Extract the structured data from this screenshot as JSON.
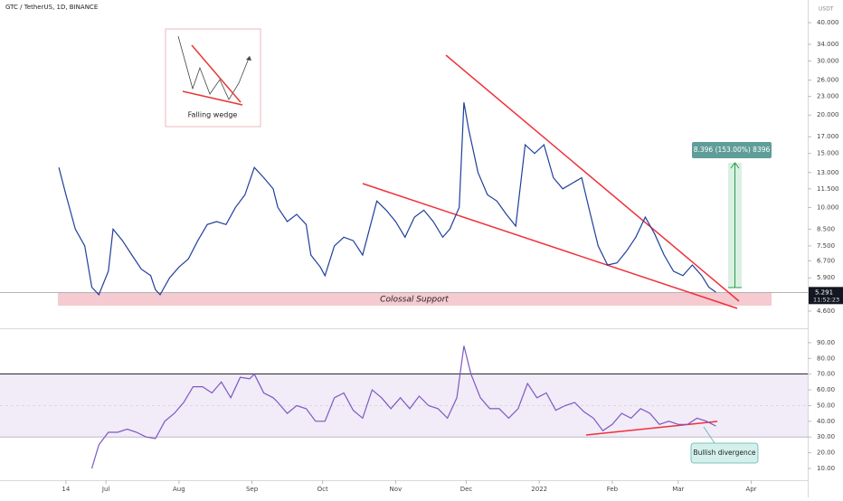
{
  "chart_data": [
    {
      "type": "line",
      "title": "GTC / TetherUS, 1D, BINANCE",
      "y_unit": "USDT",
      "log_scale": true,
      "color": "#1f3f9c",
      "xlim": [
        -28,
        315
      ],
      "ylim": [
        4.07,
        47.4
      ],
      "yticks": [
        {
          "value": 40,
          "label": "40.000"
        },
        {
          "value": 34,
          "label": "34.000"
        },
        {
          "value": 30,
          "label": "30.000"
        },
        {
          "value": 26,
          "label": "26.000"
        },
        {
          "value": 23,
          "label": "23.000"
        },
        {
          "value": 20,
          "label": "20.000"
        },
        {
          "value": 17,
          "label": "17.000"
        },
        {
          "value": 15,
          "label": "15.000"
        },
        {
          "value": 13,
          "label": "13.000"
        },
        {
          "value": 11.5,
          "label": "11.500"
        },
        {
          "value": 10,
          "label": "10.000"
        },
        {
          "value": 8.5,
          "label": "8.500"
        },
        {
          "value": 7.5,
          "label": "7.500"
        },
        {
          "value": 6.7,
          "label": "6.700"
        },
        {
          "value": 5.9,
          "label": "5.900"
        },
        {
          "value": 4.6,
          "label": "4.600"
        }
      ],
      "x": [
        -3,
        0,
        4,
        8,
        11,
        14,
        18,
        20,
        24,
        28,
        32,
        36,
        38,
        40,
        44,
        48,
        52,
        56,
        60,
        64,
        68,
        72,
        76,
        80,
        84,
        88,
        90,
        94,
        98,
        102,
        104,
        108,
        110,
        114,
        118,
        122,
        126,
        128,
        132,
        136,
        140,
        144,
        148,
        152,
        156,
        160,
        163,
        167,
        169,
        171,
        175,
        179,
        183,
        187,
        191,
        195,
        199,
        203,
        207,
        211,
        215,
        219,
        222,
        226,
        230,
        234,
        238,
        242,
        246,
        250,
        254,
        258,
        262,
        266,
        270,
        273,
        276
      ],
      "values": [
        13.5,
        11,
        8.5,
        7.5,
        5.5,
        5.2,
        6.2,
        8.5,
        7.8,
        7.0,
        6.3,
        6.0,
        5.4,
        5.2,
        5.9,
        6.4,
        6.8,
        7.8,
        8.8,
        9.0,
        8.8,
        10.0,
        11.0,
        13.5,
        12.5,
        11.5,
        10.0,
        9.0,
        9.5,
        8.8,
        7.0,
        6.4,
        6.0,
        7.5,
        8.0,
        7.8,
        7.0,
        8.0,
        10.5,
        9.8,
        9.0,
        8.0,
        9.3,
        9.8,
        9.0,
        8.0,
        8.5,
        10.0,
        22,
        18,
        13,
        11,
        10.5,
        9.5,
        8.7,
        16,
        15,
        16,
        12.5,
        11.5,
        12,
        12.5,
        10.0,
        7.5,
        6.5,
        6.6,
        7.2,
        8.0,
        9.3,
        8.2,
        7.0,
        6.2,
        6.0,
        6.5,
        6.0,
        5.5,
        5.3
      ],
      "current_price": 5.291,
      "countdown": "11:52:23",
      "annotations": {
        "inset": "Falling wedge",
        "support": "Colossal Support",
        "measure": "8.396 (153.00%) 8396"
      }
    },
    {
      "type": "line",
      "color": "#7e57c2",
      "xlim": [
        -28,
        315
      ],
      "ylim": [
        3.1,
        98
      ],
      "levels": [
        30,
        70
      ],
      "midline": 50,
      "yticks": [
        {
          "value": 90,
          "label": "90.00"
        },
        {
          "value": 80,
          "label": "80.00"
        },
        {
          "value": 70,
          "label": "70.00"
        },
        {
          "value": 60,
          "label": "60.00"
        },
        {
          "value": 50,
          "label": "50.00"
        },
        {
          "value": 40,
          "label": "40.00"
        },
        {
          "value": 30,
          "label": "30.00"
        },
        {
          "value": 20,
          "label": "20.00"
        },
        {
          "value": 10,
          "label": "10.00"
        }
      ],
      "xticks": [
        {
          "value": 0,
          "label": "14"
        },
        {
          "value": 17,
          "label": "Jul"
        },
        {
          "value": 48,
          "label": "Aug"
        },
        {
          "value": 79,
          "label": "Sep"
        },
        {
          "value": 109,
          "label": "Oct"
        },
        {
          "value": 140,
          "label": "Nov"
        },
        {
          "value": 170,
          "label": "Dec"
        },
        {
          "value": 201,
          "label": "2022"
        },
        {
          "value": 232,
          "label": "Feb"
        },
        {
          "value": 260,
          "label": "Mar"
        },
        {
          "value": 291,
          "label": "Apr"
        }
      ],
      "x": [
        11,
        14,
        18,
        22,
        26,
        30,
        34,
        38,
        42,
        46,
        50,
        54,
        58,
        62,
        66,
        70,
        74,
        78,
        80,
        84,
        88,
        90,
        94,
        98,
        102,
        106,
        110,
        114,
        118,
        122,
        126,
        130,
        134,
        138,
        142,
        146,
        150,
        154,
        158,
        162,
        166,
        169,
        172,
        176,
        180,
        184,
        188,
        192,
        196,
        200,
        204,
        208,
        212,
        216,
        220,
        224,
        228,
        232,
        236,
        240,
        244,
        248,
        252,
        256,
        260,
        264,
        268,
        272,
        276
      ],
      "values": [
        10,
        25,
        33,
        33,
        35,
        33,
        30,
        29,
        40,
        45,
        52,
        62,
        62,
        58,
        65,
        55,
        68,
        67,
        70,
        58,
        55,
        52,
        45,
        50,
        48,
        40,
        40,
        55,
        58,
        47,
        42,
        60,
        55,
        48,
        55,
        48,
        56,
        50,
        48,
        42,
        55,
        88,
        70,
        55,
        48,
        48,
        42,
        48,
        64,
        55,
        58,
        47,
        50,
        52,
        46,
        42,
        34,
        38,
        45,
        42,
        48,
        45,
        38,
        40,
        38,
        38,
        42,
        40,
        37
      ],
      "annotations": {
        "divergence": "Bullish divergence"
      }
    }
  ]
}
